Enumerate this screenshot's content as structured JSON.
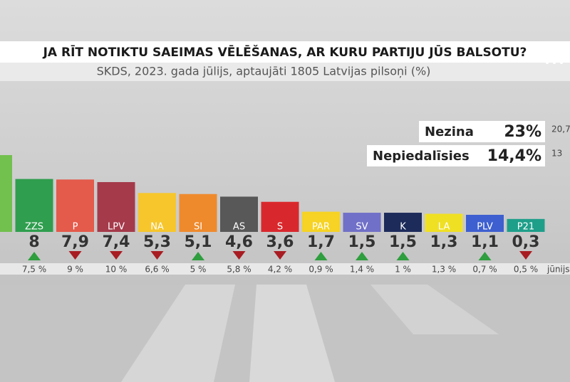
{
  "header": {
    "title": "JA RĪT NOTIKTU SAEIMAS VĒLĒŠANAS, AR KURU PARTIJU JŪS BALSOTU?",
    "subtitle": "SKDS, 2023. gada jūlijs, aptaujāti 1805 Latvijas pilsoņi (%)"
  },
  "chart_data": {
    "type": "bar",
    "categories": [
      null,
      "ZZS",
      "P",
      "LPV",
      "NA",
      "SI",
      "AS",
      "S",
      "PAR",
      "SV",
      "K",
      "LA",
      "PLV",
      "P21"
    ],
    "values": [
      12.6,
      8,
      7.9,
      7.4,
      5.3,
      5.1,
      4.6,
      3.6,
      1.7,
      1.5,
      1.5,
      1.3,
      1.1,
      0.3
    ],
    "value_labels": [
      null,
      "8",
      "7,9",
      "7,4",
      "5,3",
      "5,1",
      "4,6",
      "3,6",
      "1,7",
      "1,5",
      "1,5",
      "1,3",
      "1,1",
      "0,3"
    ],
    "colors": [
      "#72c04e",
      "#2f9e4e",
      "#e45a4b",
      "#a53a4b",
      "#f6c62c",
      "#ef8a2c",
      "#585858",
      "#d9282d",
      "#f6d324",
      "#7070c8",
      "#1d2b5b",
      "#f0e024",
      "#3d5fd0",
      "#1e9f8a"
    ],
    "previous": {
      "label": "jūnijs",
      "values": [
        null,
        7.5,
        9,
        10,
        6.6,
        5,
        5.8,
        4.2,
        0.9,
        1.4,
        1,
        1.3,
        0.7,
        0.5
      ],
      "value_labels": [
        null,
        "7,5 %",
        "9 %",
        "10 %",
        "6,6 %",
        "5 %",
        "5,8 %",
        "4,2 %",
        "0,9 %",
        "1,4 %",
        "1 %",
        "1,3 %",
        "0,7 %",
        "0,5 %"
      ]
    },
    "side": [
      {
        "label": "Nezina",
        "value": 23,
        "value_label": "23%",
        "previous": {
          "value": 20.7,
          "label": "20,7"
        }
      },
      {
        "label": "Nepiedalīsies",
        "value": 14.4,
        "value_label": "14,4%",
        "previous": {
          "value": 13,
          "label": "13"
        }
      }
    ]
  }
}
